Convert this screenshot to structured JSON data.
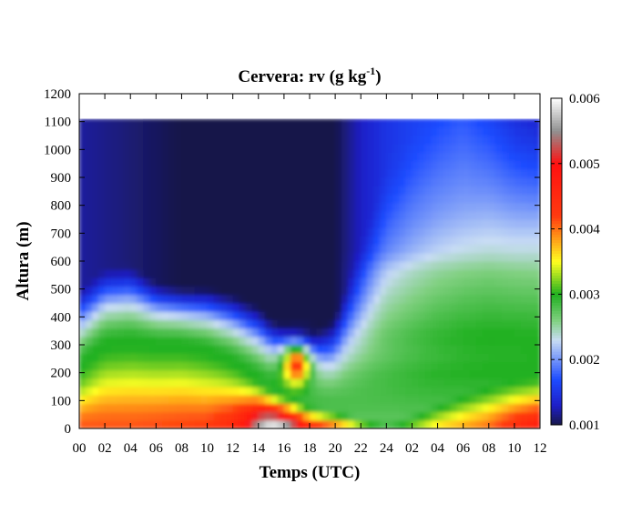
{
  "chart_data": {
    "type": "heatmap",
    "title": {
      "prefix": "Cervera: rv (g kg",
      "exponent": "-1",
      "suffix": ")"
    },
    "xlabel": "Temps (UTC)",
    "ylabel": "Altura (m)",
    "x_tick_labels": [
      "00",
      "02",
      "04",
      "06",
      "08",
      "10",
      "12",
      "14",
      "16",
      "18",
      "20",
      "22",
      "24",
      "02",
      "04",
      "06",
      "08",
      "10",
      "12"
    ],
    "x_range_hours": [
      0,
      36
    ],
    "y_range_m": [
      0,
      1200
    ],
    "y_ticks": [
      0,
      100,
      200,
      300,
      400,
      500,
      600,
      700,
      800,
      900,
      1000,
      1100,
      1200
    ],
    "data_top_m": 1110,
    "colorbar": {
      "min": 0.001,
      "max": 0.006,
      "ticks": [
        "0.001",
        "0.002",
        "0.003",
        "0.004",
        "0.005",
        "0.006"
      ],
      "tick_values": [
        0.001,
        0.002,
        0.003,
        0.004,
        0.005,
        0.006
      ],
      "colors": [
        {
          "v": 0.001,
          "c": "#181848"
        },
        {
          "v": 0.0013,
          "c": "#1e1ec8"
        },
        {
          "v": 0.0017,
          "c": "#1e4cff"
        },
        {
          "v": 0.0023,
          "c": "#c8dcf4"
        },
        {
          "v": 0.0026,
          "c": "#80d080"
        },
        {
          "v": 0.003,
          "c": "#20b020"
        },
        {
          "v": 0.0035,
          "c": "#ffff20"
        },
        {
          "v": 0.0042,
          "c": "#ff3a10"
        },
        {
          "v": 0.005,
          "c": "#ff1010"
        },
        {
          "v": 0.0055,
          "c": "#909090"
        },
        {
          "v": 0.006,
          "c": "#ffffff"
        }
      ]
    },
    "grid": false,
    "legend": "colorbar-right"
  }
}
